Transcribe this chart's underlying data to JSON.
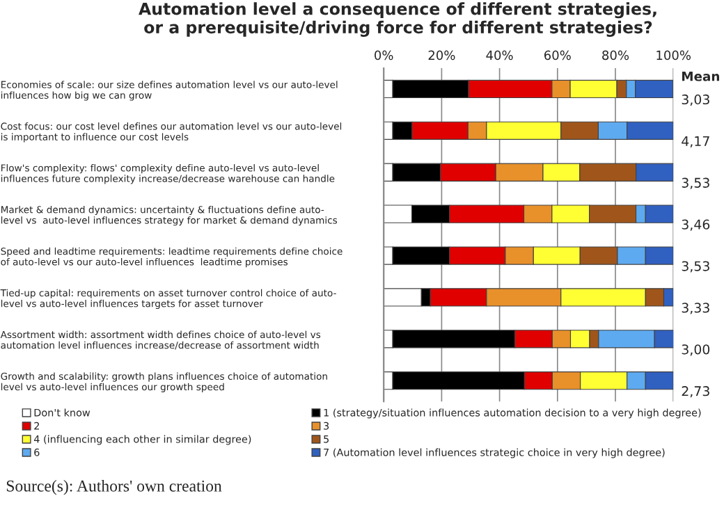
{
  "chart_data": {
    "type": "bar",
    "orientation": "horizontal",
    "stacked": true,
    "title": "Automation level a consequence of different strategies,\nor a prerequisite/driving force for different strategies?",
    "categories": [
      "Economies of scale: our size defines automation level vs our auto-level\ninfluences how big we can grow",
      "Cost focus: our cost level defines our automation level vs our auto-level\nis important to influence our cost levels",
      "Flow's complexity: flows' complexity define auto-level vs auto-level\ninfluences future complexity increase/decrease warehouse can handle",
      "Market & demand dynamics: uncertainty & fluctuations define auto-\nlevel vs  auto-level influences strategy for market & demand dynamics",
      "Speed and leadtime requirements: leadtime requirements define choice\nof auto-level vs our auto-level influences  leadtime promises",
      "Tied-up capital: requirements on asset turnover control choice of auto-\nlevel vs auto-level influences targets for asset turnover",
      "Assortment width: assortment width defines choice of auto-level vs\nautomation level influences increase/decrease of assortment width",
      "Growth and scalability: growth plans influences choice of automation\nlevel vs auto-level influences our growth speed"
    ],
    "series": [
      {
        "name": "Don't know",
        "color": "#ffffff",
        "values": [
          3.1,
          3.1,
          3.1,
          9.7,
          3.1,
          13.0,
          3.1,
          3.1
        ]
      },
      {
        "name": "1 (strategy/situation influences automation decision to a very high degree)",
        "color": "#000000",
        "values": [
          26.2,
          6.7,
          16.5,
          13.0,
          19.6,
          3.1,
          42.2,
          45.5
        ]
      },
      {
        "name": "2",
        "color": "#e00000",
        "values": [
          28.8,
          19.3,
          19.1,
          25.7,
          19.3,
          19.4,
          12.9,
          9.6
        ]
      },
      {
        "name": "3",
        "color": "#e8902a",
        "values": [
          6.3,
          6.4,
          16.3,
          9.7,
          9.7,
          25.7,
          6.3,
          9.7
        ]
      },
      {
        "name": "4 (influencing each other in similar degree)",
        "color": "#ffff33",
        "values": [
          16.1,
          25.7,
          12.7,
          12.9,
          16.1,
          29.2,
          6.6,
          16.1
        ]
      },
      {
        "name": "5",
        "color": "#a0561b",
        "values": [
          3.3,
          12.9,
          19.4,
          16.1,
          12.9,
          6.3,
          3.1,
          null
        ]
      },
      {
        "name": "6",
        "color": "#5eaaf0",
        "values": [
          3.1,
          9.9,
          null,
          3.3,
          9.7,
          null,
          19.3,
          6.4
        ]
      },
      {
        "name": "7 (Automation level influences strategic choice in very high degree)",
        "color": "#3060c0",
        "values": [
          13.0,
          16.0,
          12.9,
          9.6,
          9.6,
          3.3,
          6.6,
          9.6
        ]
      }
    ],
    "xlim": [
      0,
      100
    ],
    "xticks": [
      {
        "value": 0,
        "label": "0%"
      },
      {
        "value": 20,
        "label": "20%"
      },
      {
        "value": 40,
        "label": "40%"
      },
      {
        "value": 60,
        "label": "60%"
      },
      {
        "value": 80,
        "label": "80%"
      },
      {
        "value": 100,
        "label": "100%"
      }
    ],
    "grid": "x",
    "legend": "bottom",
    "annotations": [
      "Mean",
      "3,03",
      "4,17",
      "3,53",
      "3,46",
      "3,53",
      "3,33",
      "3,00",
      "2,73",
      "Source(s): Authors' own creation"
    ]
  }
}
